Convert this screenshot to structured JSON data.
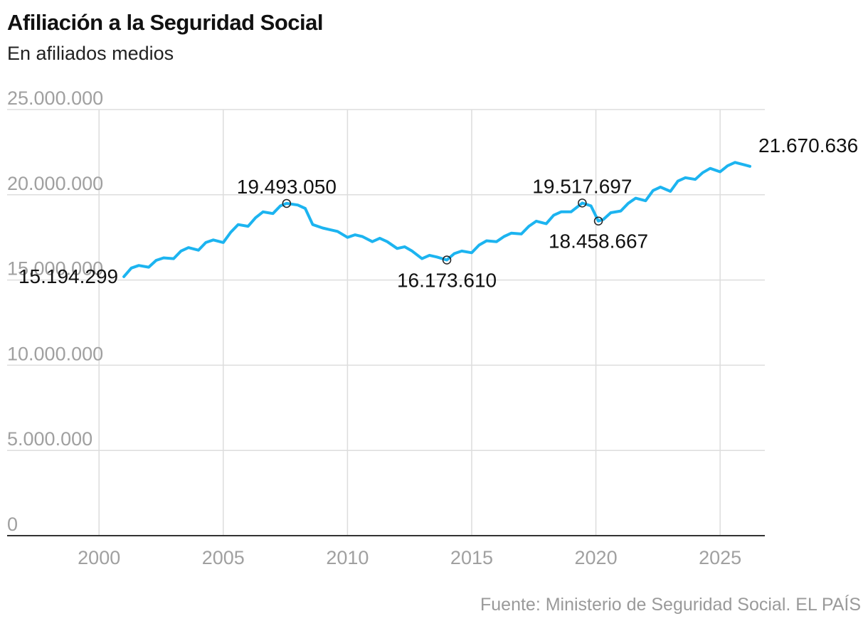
{
  "title": "Afiliación a la Seguridad Social",
  "subtitle": "En afiliados medios",
  "source": "Fuente: Ministerio de Seguridad Social. EL PAÍS",
  "colors": {
    "line": "#1cb4f0",
    "grid": "#dddddd",
    "axis": "#333333",
    "tick_text": "#a0a0a0",
    "label_text": "#111111"
  },
  "chart_data": {
    "type": "line",
    "title": "Afiliación a la Seguridad Social",
    "subtitle": "En afiliados medios",
    "xlabel": "",
    "ylabel": "",
    "xlim": [
      1996.3,
      2026.8
    ],
    "ylim": [
      0,
      25000000
    ],
    "grid": true,
    "x_ticks": [
      2000,
      2005,
      2010,
      2015,
      2020,
      2025
    ],
    "x_tick_labels": [
      "2000",
      "2005",
      "2010",
      "2015",
      "2020",
      "2025"
    ],
    "y_ticks": [
      0,
      5000000,
      10000000,
      15000000,
      20000000,
      25000000
    ],
    "y_tick_labels": [
      "0",
      "5.000.000",
      "10.000.000",
      "15.000.000",
      "20.000.000",
      "25.000.000"
    ],
    "series": [
      {
        "name": "Afiliados medios",
        "x": [
          2001.0,
          2001.3,
          2001.6,
          2002.0,
          2002.3,
          2002.6,
          2003.0,
          2003.3,
          2003.6,
          2004.0,
          2004.3,
          2004.6,
          2005.0,
          2005.3,
          2005.6,
          2006.0,
          2006.3,
          2006.6,
          2007.0,
          2007.3,
          2007.55,
          2008.0,
          2008.3,
          2008.6,
          2009.0,
          2009.3,
          2009.6,
          2010.0,
          2010.3,
          2010.6,
          2011.0,
          2011.3,
          2011.6,
          2012.0,
          2012.3,
          2012.6,
          2013.0,
          2013.3,
          2013.6,
          2014.0,
          2014.3,
          2014.6,
          2015.0,
          2015.3,
          2015.6,
          2016.0,
          2016.3,
          2016.6,
          2017.0,
          2017.3,
          2017.6,
          2018.0,
          2018.3,
          2018.6,
          2019.0,
          2019.45,
          2019.8,
          2020.1,
          2020.3,
          2020.6,
          2021.0,
          2021.3,
          2021.6,
          2022.0,
          2022.3,
          2022.6,
          2023.0,
          2023.3,
          2023.6,
          2024.0,
          2024.3,
          2024.6,
          2025.0,
          2025.3,
          2025.6,
          2026.0,
          2026.2
        ],
        "values": [
          15194299,
          15700000,
          15850000,
          15750000,
          16150000,
          16300000,
          16250000,
          16700000,
          16900000,
          16750000,
          17200000,
          17350000,
          17200000,
          17800000,
          18250000,
          18150000,
          18650000,
          19000000,
          18900000,
          19350000,
          19493050,
          19400000,
          19200000,
          18250000,
          18050000,
          17950000,
          17850000,
          17500000,
          17650000,
          17550000,
          17250000,
          17450000,
          17250000,
          16850000,
          16950000,
          16700000,
          16250000,
          16450000,
          16350000,
          16173610,
          16550000,
          16700000,
          16600000,
          17050000,
          17300000,
          17250000,
          17550000,
          17750000,
          17700000,
          18150000,
          18450000,
          18300000,
          18800000,
          19000000,
          19000000,
          19517697,
          19350000,
          18458667,
          18550000,
          18950000,
          19050000,
          19500000,
          19800000,
          19650000,
          20250000,
          20450000,
          20200000,
          20800000,
          21000000,
          20900000,
          21300000,
          21550000,
          21350000,
          21700000,
          21900000,
          21750000,
          21670636
        ]
      }
    ],
    "annotations": [
      {
        "x": 2001.0,
        "y": 15194299,
        "label": "15.194.299",
        "position": "left",
        "marker": false
      },
      {
        "x": 2007.55,
        "y": 19493050,
        "label": "19.493.050",
        "position": "above",
        "marker": true
      },
      {
        "x": 2014.0,
        "y": 16173610,
        "label": "16.173.610",
        "position": "below",
        "marker": true
      },
      {
        "x": 2019.45,
        "y": 19517697,
        "label": "19.517.697",
        "position": "above",
        "marker": true
      },
      {
        "x": 2020.1,
        "y": 18458667,
        "label": "18.458.667",
        "position": "below",
        "marker": true
      },
      {
        "x": 2026.2,
        "y": 21670636,
        "label": "21.670.636",
        "position": "right",
        "marker": false
      }
    ]
  }
}
